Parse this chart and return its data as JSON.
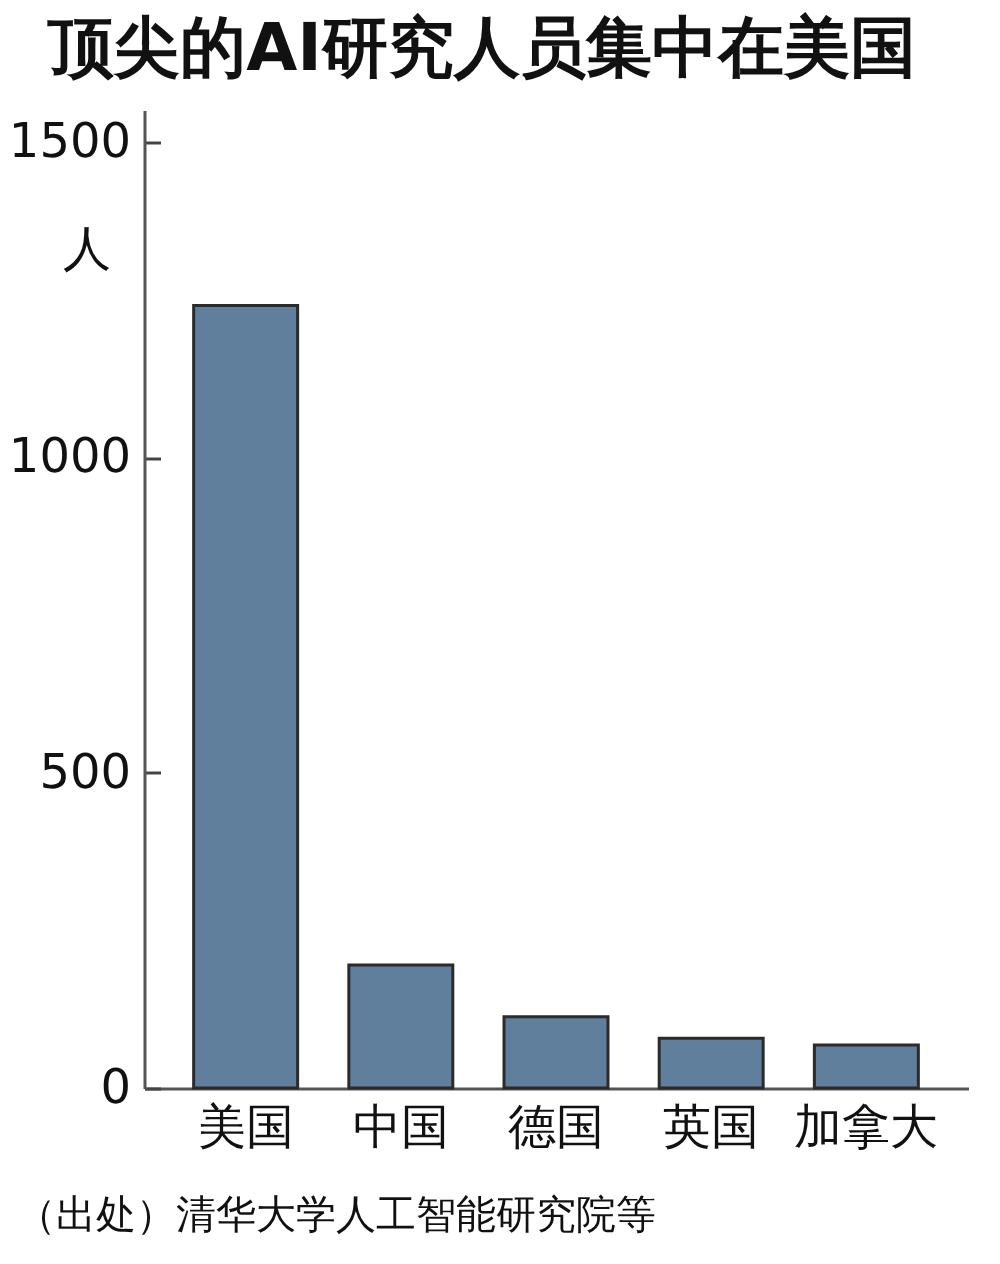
{
  "chart_data": {
    "type": "bar",
    "title": "顶尖的AI研究人员集中在美国",
    "ylabel": "人",
    "categories": [
      "美国",
      "中国",
      "德国",
      "英国",
      "加拿大"
    ],
    "values": [
      1240,
      195,
      113,
      79,
      68
    ],
    "color": "#5f7f9c",
    "ylim": [
      0,
      1550
    ],
    "yticks": [
      0,
      500,
      1000,
      1500
    ],
    "grid": false,
    "annotations": [
      "（出处）清华大学人工智能研究院等"
    ]
  }
}
